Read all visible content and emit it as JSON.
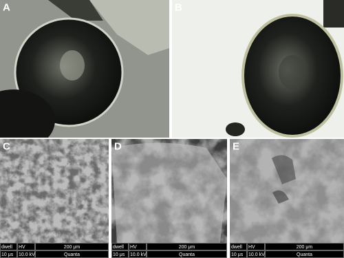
{
  "panels": [
    {
      "label": "A"
    },
    {
      "label": "B"
    },
    {
      "label": "C",
      "info": {
        "dwell": "dwell",
        "hv": "HV",
        "scale": "200 μm",
        "dwell_value": "10 μs",
        "hv_value": "10.0 kV",
        "instrument": "Quanta"
      }
    },
    {
      "label": "D",
      "info": {
        "dwell": "dwell",
        "hv": "HV",
        "scale": "200 μm",
        "dwell_value": "10 μs",
        "hv_value": "10.0 kV",
        "instrument": "Quanta"
      }
    },
    {
      "label": "E",
      "info": {
        "dwell": "dwell",
        "hv": "HV",
        "scale": "200 μm",
        "dwell_value": "10 μs",
        "hv_value": "10.0 kV",
        "instrument": "Quanta"
      }
    }
  ]
}
